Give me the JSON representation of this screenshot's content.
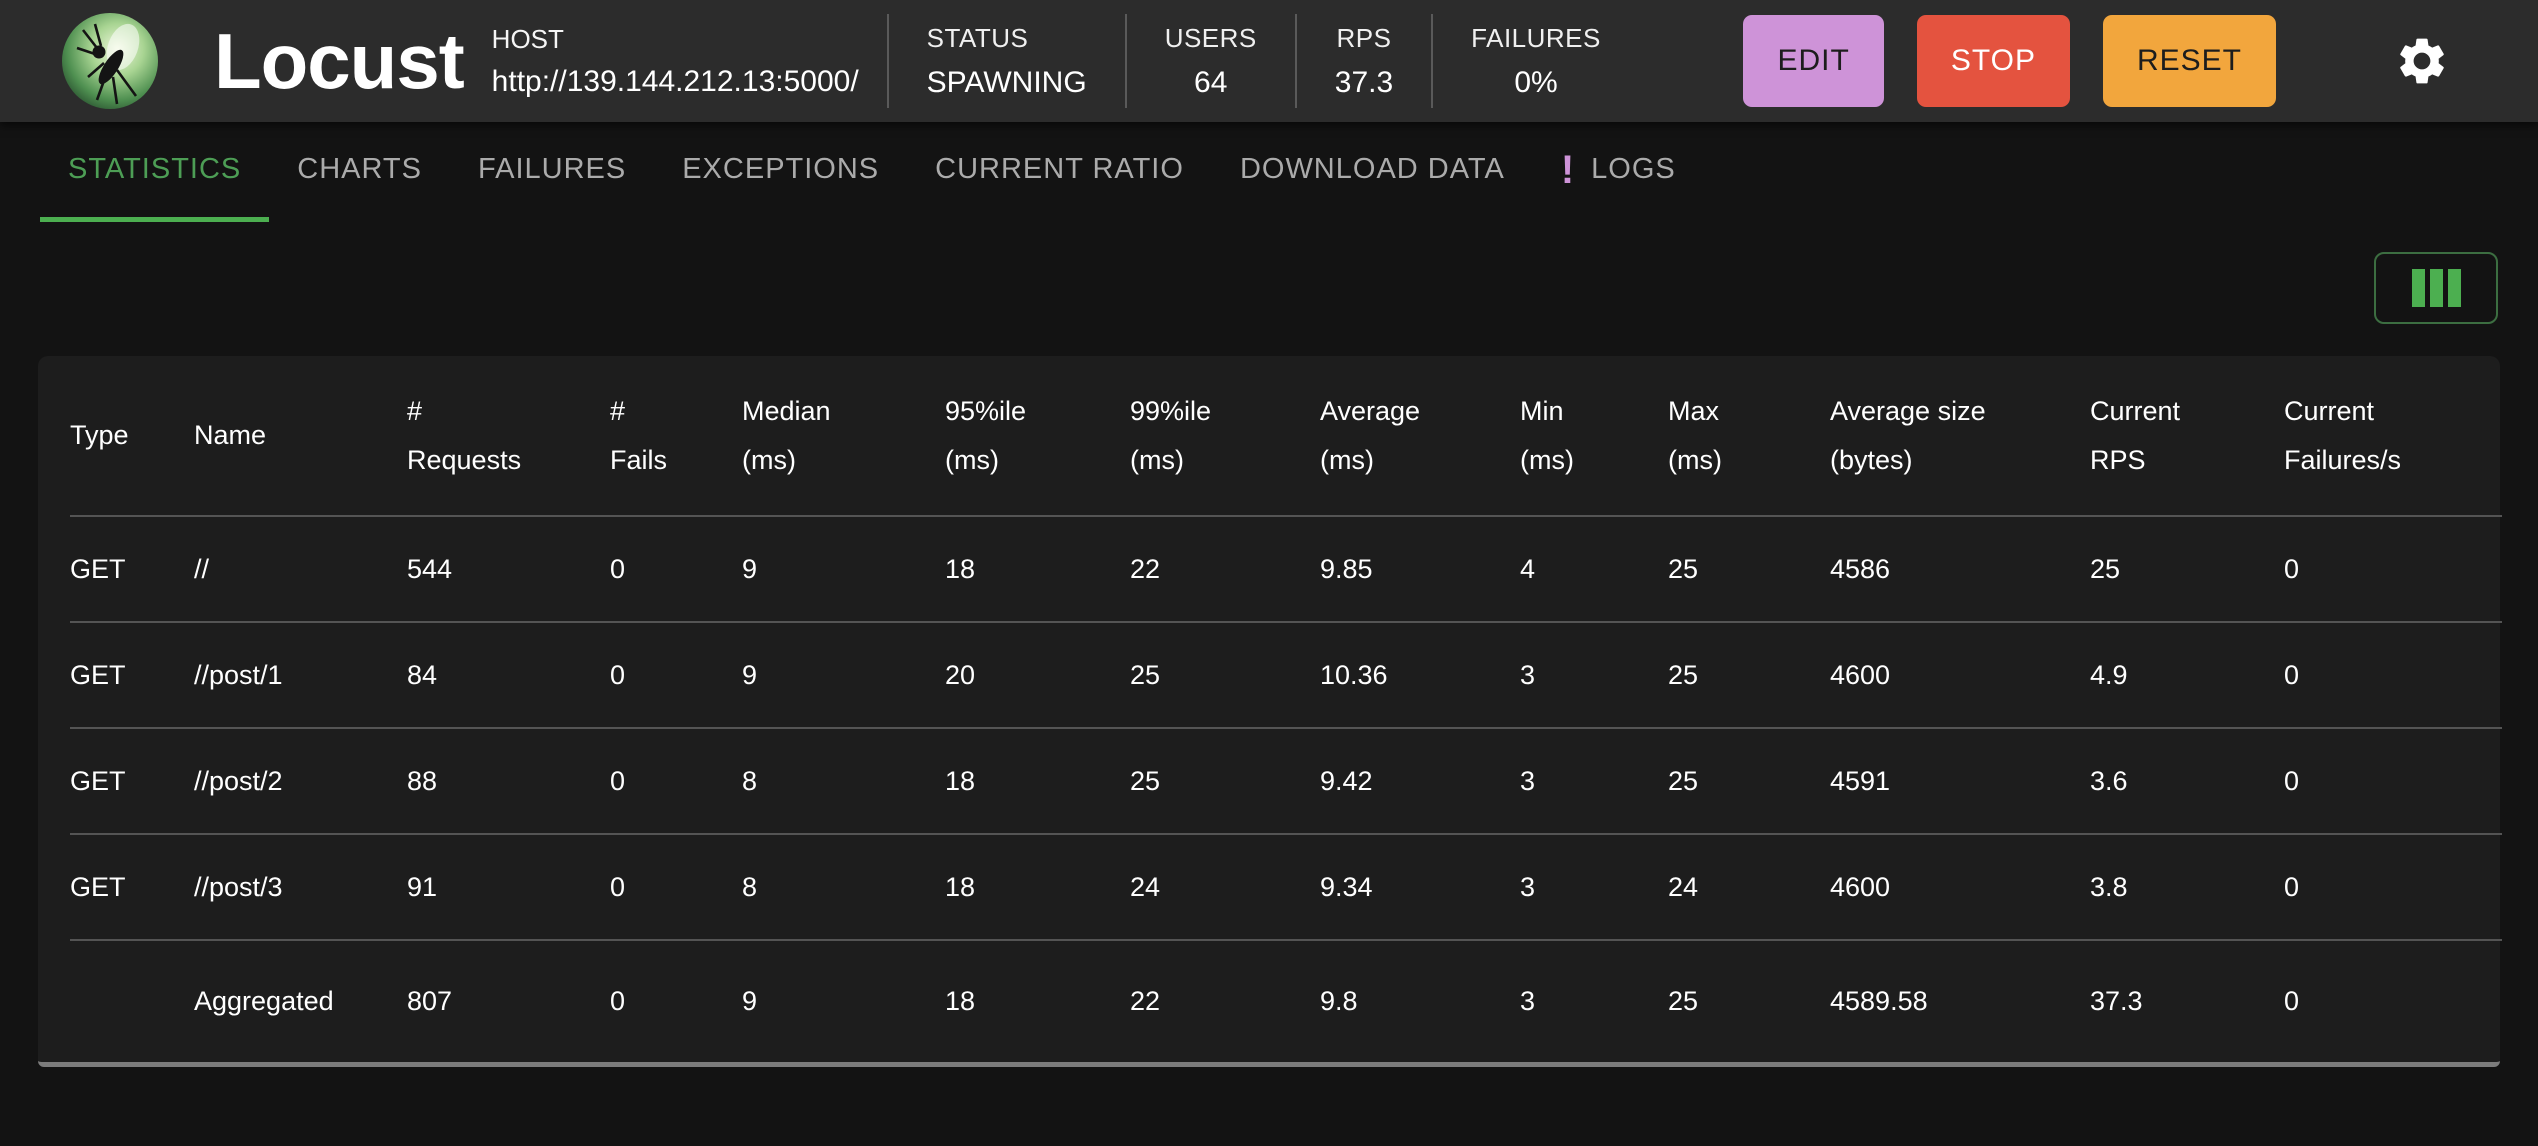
{
  "header": {
    "brand": "Locust",
    "host_label": "HOST",
    "host_value": "http://139.144.212.13:5000/",
    "stats": [
      {
        "label": "STATUS",
        "value": "SPAWNING"
      },
      {
        "label": "USERS",
        "value": "64"
      },
      {
        "label": "RPS",
        "value": "37.3"
      },
      {
        "label": "FAILURES",
        "value": "0%"
      }
    ],
    "buttons": [
      {
        "label": "EDIT",
        "bg": "#ce93d8",
        "text": "#1d1d1d"
      },
      {
        "label": "STOP",
        "bg": "#e4533f",
        "text": "#ffffff"
      },
      {
        "label": "RESET",
        "bg": "#f2a63d",
        "text": "#1d1d1d"
      }
    ]
  },
  "tabs": [
    {
      "label": "STATISTICS",
      "active": true
    },
    {
      "label": "CHARTS",
      "active": false
    },
    {
      "label": "FAILURES",
      "active": false
    },
    {
      "label": "EXCEPTIONS",
      "active": false
    },
    {
      "label": "CURRENT RATIO",
      "active": false
    },
    {
      "label": "DOWNLOAD DATA",
      "active": false
    },
    {
      "label": "LOGS",
      "active": false,
      "icon": "exclamation-icon",
      "icon_glyph": "!",
      "icon_color": "#ce93d8"
    }
  ],
  "accent_colors": {
    "active_tab_green": "#4caf50",
    "logs_badge_purple": "#ce93d8"
  },
  "table": {
    "columns": [
      "Type",
      "Name",
      "#\nRequests",
      "#\nFails",
      "Median\n(ms)",
      "95%ile\n(ms)",
      "99%ile\n(ms)",
      "Average\n(ms)",
      "Min\n(ms)",
      "Max\n(ms)",
      "Average size\n(bytes)",
      "Current\nRPS",
      "Current\nFailures/s"
    ],
    "rows": [
      {
        "aggregated": false,
        "cells": [
          "GET",
          "//",
          "544",
          "0",
          "9",
          "18",
          "22",
          "9.85",
          "4",
          "25",
          "4586",
          "25",
          "0"
        ]
      },
      {
        "aggregated": false,
        "cells": [
          "GET",
          "//post/1",
          "84",
          "0",
          "9",
          "20",
          "25",
          "10.36",
          "3",
          "25",
          "4600",
          "4.9",
          "0"
        ]
      },
      {
        "aggregated": false,
        "cells": [
          "GET",
          "//post/2",
          "88",
          "0",
          "8",
          "18",
          "25",
          "9.42",
          "3",
          "25",
          "4591",
          "3.6",
          "0"
        ]
      },
      {
        "aggregated": false,
        "cells": [
          "GET",
          "//post/3",
          "91",
          "0",
          "8",
          "18",
          "24",
          "9.34",
          "3",
          "24",
          "4600",
          "3.8",
          "0"
        ]
      },
      {
        "aggregated": true,
        "cells": [
          "",
          "Aggregated",
          "807",
          "0",
          "9",
          "18",
          "22",
          "9.8",
          "3",
          "25",
          "4589.58",
          "37.3",
          "0"
        ]
      }
    ]
  }
}
